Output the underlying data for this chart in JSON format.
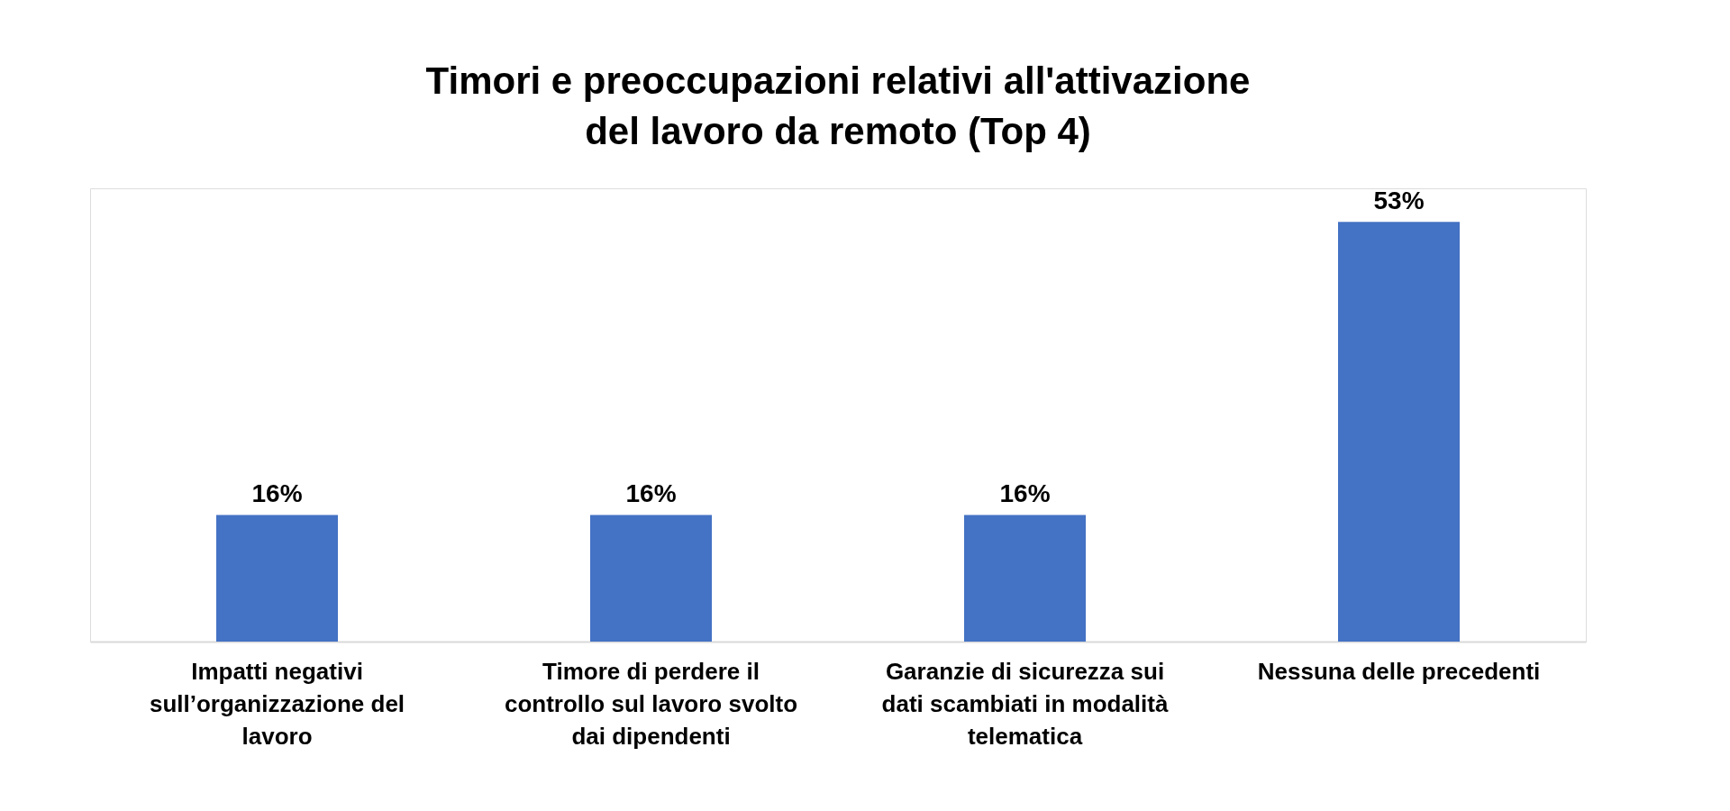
{
  "chart_data": {
    "type": "bar",
    "title": "Timori e preoccupazioni relativi all'attivazione del lavoro da remoto (Top 4)",
    "categories": [
      "Impatti negativi sull’organizzazione del lavoro",
      "Timore di perdere il controllo sul lavoro svolto dai dipendenti",
      "Garanzie di sicurezza sui dati scambiati in modalità telematica",
      "Nessuna delle precedenti"
    ],
    "values": [
      16,
      16,
      16,
      53
    ],
    "value_labels": [
      "16%",
      "16%",
      "16%",
      "53%"
    ],
    "color": "#4472c4"
  }
}
